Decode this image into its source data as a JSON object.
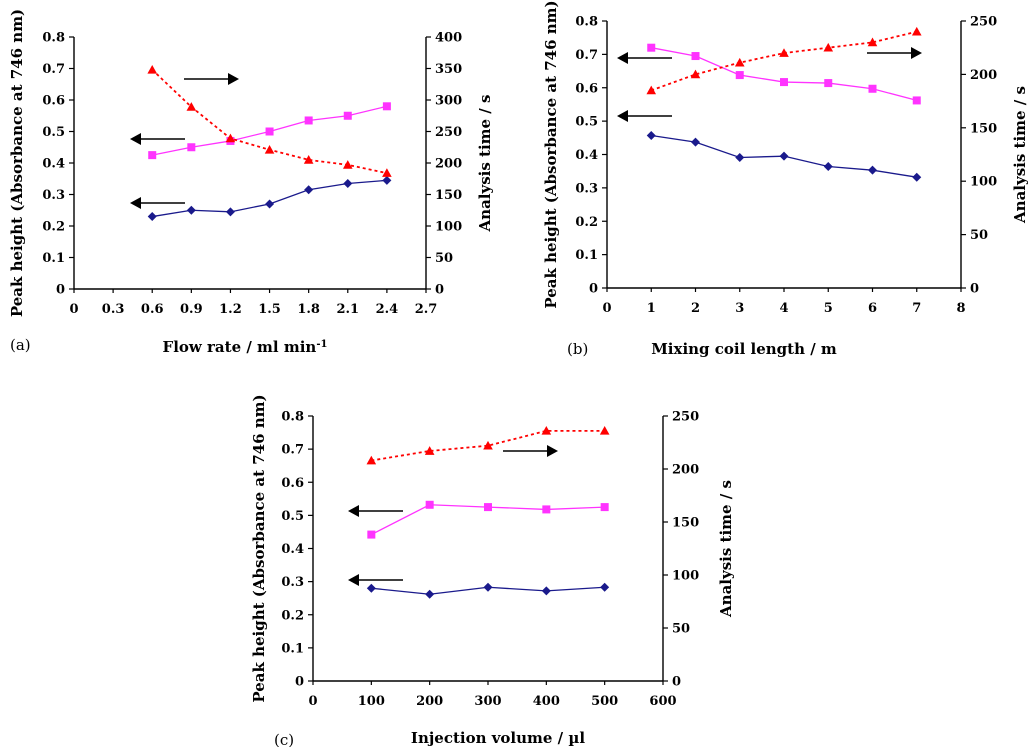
{
  "chart_data": [
    {
      "type": "line",
      "panel_label": "(a)",
      "xlabel": "Flow rate / ml min",
      "xlabel_sup": "-1",
      "ylabel": "Peak height (Absorbance at 746 nm)",
      "y2label": "Analysis time / s",
      "xlim": [
        0,
        2.7
      ],
      "ylim": [
        0,
        0.8
      ],
      "y2lim": [
        0,
        400
      ],
      "xticks": [
        "0",
        "0.3",
        "0.6",
        "0.9",
        "1.2",
        "1.5",
        "1.8",
        "2.1",
        "2.4",
        "2.7"
      ],
      "yticks": [
        "0",
        "0.1",
        "0.2",
        "0.3",
        "0.4",
        "0.5",
        "0.6",
        "0.7",
        "0.8"
      ],
      "y2ticks": [
        "0",
        "50",
        "100",
        "150",
        "200",
        "250",
        "300",
        "350",
        "400"
      ],
      "grid": false,
      "x": [
        0.6,
        0.9,
        1.2,
        1.5,
        1.8,
        2.1,
        2.4
      ],
      "series": [
        {
          "axis": "left",
          "marker": "diamond",
          "color": "#1a1a8c",
          "dashed": false,
          "values": [
            0.23,
            0.25,
            0.245,
            0.27,
            0.315,
            0.335,
            0.345
          ]
        },
        {
          "axis": "left",
          "marker": "square",
          "color": "#ff33ff",
          "dashed": false,
          "values": [
            0.425,
            0.45,
            0.47,
            0.5,
            0.535,
            0.55,
            0.58
          ]
        },
        {
          "axis": "right",
          "marker": "triangle",
          "color": "#ff0000",
          "dashed": true,
          "values": [
            348,
            289,
            239,
            221,
            205,
            197,
            184
          ]
        }
      ],
      "annotations": [
        {
          "kind": "arrow",
          "direction": "right",
          "series_index": 2
        },
        {
          "kind": "arrow",
          "direction": "left",
          "series_index": 1
        },
        {
          "kind": "arrow",
          "direction": "left",
          "series_index": 0
        }
      ]
    },
    {
      "type": "line",
      "panel_label": "(b)",
      "xlabel": "Mixing coil length / m",
      "ylabel": "Peak height (Absorbance at 746 nm)",
      "y2label": "Analysis time / s",
      "xlim": [
        0,
        8
      ],
      "ylim": [
        0,
        0.8
      ],
      "y2lim": [
        0,
        250
      ],
      "xticks": [
        "0",
        "1",
        "2",
        "3",
        "4",
        "5",
        "6",
        "7",
        "8"
      ],
      "yticks": [
        "0",
        "0.1",
        "0.2",
        "0.3",
        "0.4",
        "0.5",
        "0.6",
        "0.7",
        "0.8"
      ],
      "y2ticks": [
        "0",
        "50",
        "100",
        "150",
        "200",
        "250"
      ],
      "grid": false,
      "x": [
        1,
        2,
        3,
        4,
        5,
        6,
        7
      ],
      "series": [
        {
          "axis": "left",
          "marker": "diamond",
          "color": "#1a1a8c",
          "dashed": false,
          "values": [
            0.457,
            0.437,
            0.391,
            0.395,
            0.364,
            0.353,
            0.332
          ]
        },
        {
          "axis": "left",
          "marker": "square",
          "color": "#ff33ff",
          "dashed": false,
          "values": [
            0.72,
            0.695,
            0.638,
            0.617,
            0.614,
            0.597,
            0.562
          ]
        },
        {
          "axis": "right",
          "marker": "triangle",
          "color": "#ff0000",
          "dashed": true,
          "values": [
            185,
            200,
            211,
            220,
            225,
            230,
            240
          ]
        }
      ],
      "annotations": [
        {
          "kind": "arrow",
          "direction": "left",
          "series_index": 1
        },
        {
          "kind": "arrow",
          "direction": "right",
          "series_index": 2
        },
        {
          "kind": "arrow",
          "direction": "left",
          "series_index": 0
        }
      ]
    },
    {
      "type": "line",
      "panel_label": "(c)",
      "xlabel": "Injection volume / µl",
      "ylabel": "Peak height (Absorbance at 746 nm)",
      "y2label": "Analysis time / s",
      "xlim": [
        0,
        600
      ],
      "ylim": [
        0,
        0.8
      ],
      "y2lim": [
        0,
        250
      ],
      "xticks": [
        "0",
        "100",
        "200",
        "300",
        "400",
        "500",
        "600"
      ],
      "yticks": [
        "0",
        "0.1",
        "0.2",
        "0.3",
        "0.4",
        "0.5",
        "0.6",
        "0.7",
        "0.8"
      ],
      "y2ticks": [
        "0",
        "50",
        "100",
        "150",
        "200",
        "250"
      ],
      "grid": false,
      "x": [
        100,
        200,
        300,
        400,
        500
      ],
      "series": [
        {
          "axis": "left",
          "marker": "diamond",
          "color": "#1a1a8c",
          "dashed": false,
          "values": [
            0.28,
            0.262,
            0.283,
            0.272,
            0.283
          ]
        },
        {
          "axis": "left",
          "marker": "square",
          "color": "#ff33ff",
          "dashed": false,
          "values": [
            0.442,
            0.532,
            0.525,
            0.518,
            0.525
          ]
        },
        {
          "axis": "right",
          "marker": "triangle",
          "color": "#ff0000",
          "dashed": true,
          "values": [
            208,
            217,
            222,
            236,
            236
          ]
        }
      ],
      "annotations": [
        {
          "kind": "arrow",
          "direction": "right",
          "series_index": 2
        },
        {
          "kind": "arrow",
          "direction": "left",
          "series_index": 1
        },
        {
          "kind": "arrow",
          "direction": "left",
          "series_index": 0
        }
      ]
    }
  ]
}
